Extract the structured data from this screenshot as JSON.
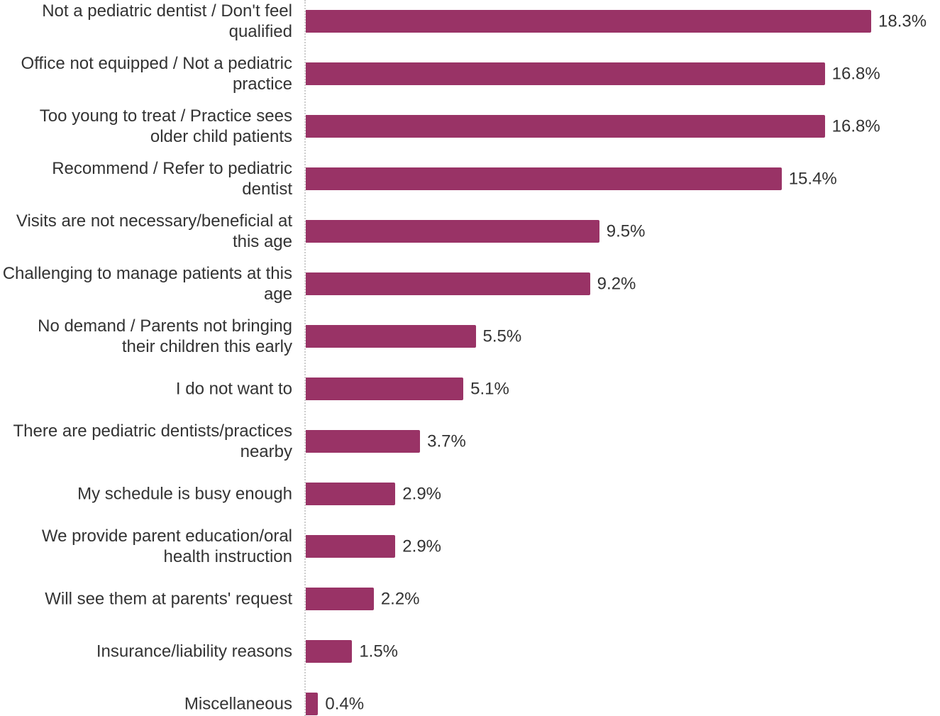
{
  "chart_data": {
    "type": "bar",
    "orientation": "horizontal",
    "color": "#993366",
    "categories": [
      "Not a pediatric dentist / Don't feel qualified",
      "Office not equipped / Not a pediatric practice",
      "Too young to treat / Practice sees older child patients",
      "Recommend / Refer to pediatric dentist",
      "Visits are not necessary/beneficial at this age",
      "Challenging to manage patients at this age",
      "No demand / Parents not bringing their children this early",
      "I do not want to",
      "There are pediatric dentists/practices nearby",
      "My schedule is busy enough",
      "We provide parent education/oral health instruction",
      "Will see them at parents' request",
      "Insurance/liability reasons",
      "Miscellaneous"
    ],
    "values": [
      18.3,
      16.8,
      16.8,
      15.4,
      9.5,
      9.2,
      5.5,
      5.1,
      3.7,
      2.9,
      2.9,
      2.2,
      1.5,
      0.4
    ],
    "value_labels": [
      "18.3%",
      "16.8%",
      "16.8%",
      "15.4%",
      "9.5%",
      "9.2%",
      "5.5%",
      "5.1%",
      "3.7%",
      "2.9%",
      "2.9%",
      "2.2%",
      "1.5%",
      "0.4%"
    ]
  }
}
